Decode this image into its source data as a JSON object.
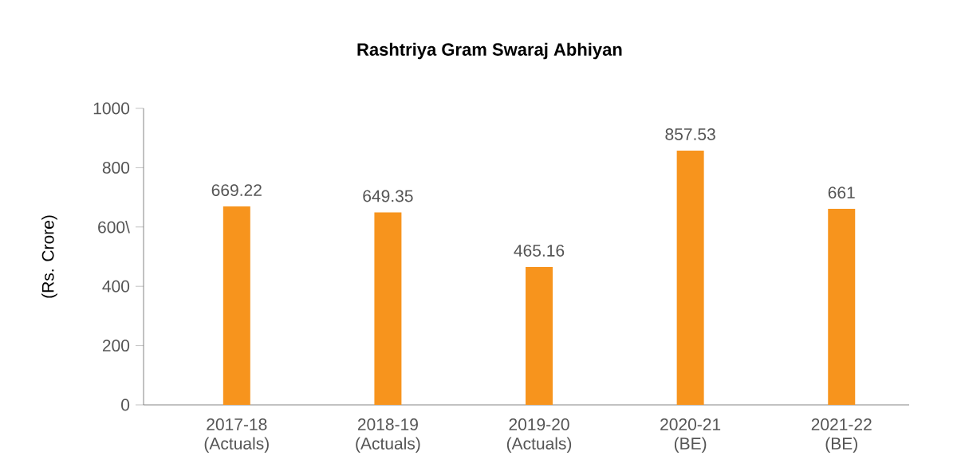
{
  "chart_data": {
    "type": "bar",
    "title": "Rashtriya Gram Swaraj Abhiyan",
    "ylabel": "(Rs. Crore)",
    "categories": [
      "2017-18 (Actuals)",
      "2018-19 (Actuals)",
      "2019-20 (Actuals)",
      "2020-21 (BE)",
      "2021-22 (BE)"
    ],
    "values": [
      669.22,
      649.35,
      465.16,
      857.53,
      661
    ],
    "color": "#f7941d",
    "ylim": [
      0,
      1000
    ],
    "yticks": [
      0,
      200,
      400,
      {
        "value": 600,
        "label": "600\\"
      },
      800,
      1000
    ],
    "data_labels": true,
    "grid": false
  }
}
